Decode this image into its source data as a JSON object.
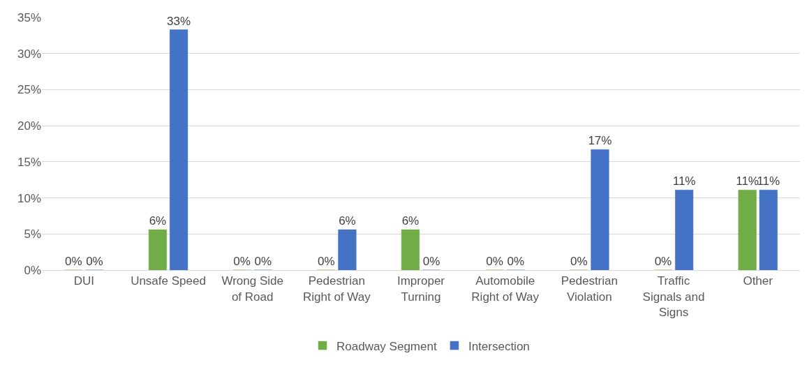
{
  "chart_data": {
    "type": "bar",
    "categories": [
      "DUI",
      "Unsafe Speed",
      "Wrong Side of Road",
      "Pedestrian Right of Way",
      "Improper Turning",
      "Automobile Right of Way",
      "Pedestrian Violation",
      "Traffic Signals and Signs",
      "Other"
    ],
    "series": [
      {
        "name": "Roadway Segment",
        "color": "#70ad47",
        "values": [
          0,
          5.6,
          0,
          0,
          5.6,
          0,
          0,
          0,
          11.1
        ],
        "value_labels": [
          "0%",
          "6%",
          "0%",
          "0%",
          "6%",
          "0%",
          "0%",
          "0%",
          "11%"
        ]
      },
      {
        "name": "Intersection",
        "color": "#4472c4",
        "values": [
          0,
          33.3,
          0,
          5.6,
          0,
          0,
          16.7,
          11.1,
          11.1
        ],
        "value_labels": [
          "0%",
          "33%",
          "0%",
          "6%",
          "0%",
          "0%",
          "17%",
          "11%",
          "11%"
        ]
      }
    ],
    "ylim": [
      0,
      35
    ],
    "yticks": [
      {
        "value": 0,
        "label": "0%"
      },
      {
        "value": 5,
        "label": "5%"
      },
      {
        "value": 10,
        "label": "10%"
      },
      {
        "value": 15,
        "label": "15%"
      },
      {
        "value": 20,
        "label": "20%"
      },
      {
        "value": 25,
        "label": "25%"
      },
      {
        "value": 30,
        "label": "30%"
      },
      {
        "value": 35,
        "label": "35%"
      }
    ],
    "grid": "y",
    "legend": "bottom"
  }
}
